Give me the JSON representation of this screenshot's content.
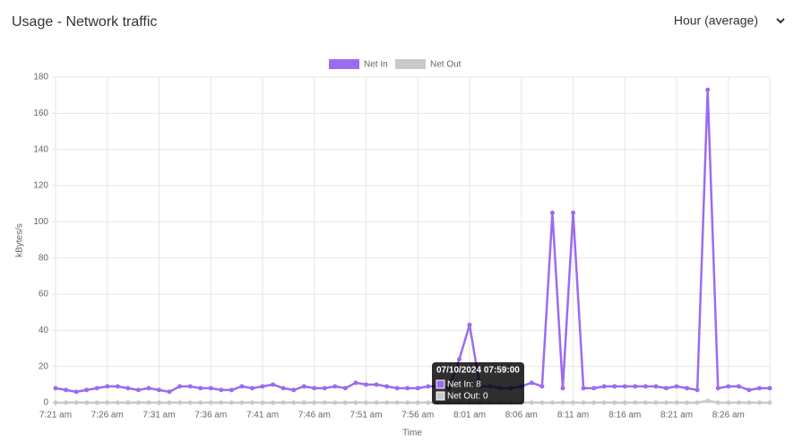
{
  "header": {
    "title": "Usage - Network traffic",
    "dropdown": "Hour (average)"
  },
  "chart_data": {
    "type": "line",
    "x_label": "Time",
    "y_label": "kBytes/s",
    "categories": [
      "7:21 am",
      null,
      null,
      null,
      null,
      "7:26 am",
      null,
      null,
      null,
      null,
      "7:31 am",
      null,
      null,
      null,
      null,
      "7:36 am",
      null,
      null,
      null,
      null,
      "7:41 am",
      null,
      null,
      null,
      null,
      "7:46 am",
      null,
      null,
      null,
      null,
      "7:51 am",
      null,
      null,
      null,
      null,
      "7:56 am",
      null,
      null,
      null,
      null,
      "8:01 am",
      null,
      null,
      null,
      null,
      "8:06 am",
      null,
      null,
      null,
      null,
      "8:11 am",
      null,
      null,
      null,
      null,
      "8:16 am",
      null,
      null,
      null,
      null,
      "8:21 am",
      null,
      null,
      null,
      null,
      "8:26 am",
      null,
      null,
      null,
      null
    ],
    "series": [
      {
        "name": "Net In",
        "color": "#9b6cf0",
        "values": [
          8,
          7,
          6,
          7,
          8,
          9,
          9,
          8,
          7,
          8,
          7,
          6,
          9,
          9,
          8,
          8,
          7,
          7,
          9,
          8,
          9,
          10,
          8,
          7,
          9,
          8,
          8,
          9,
          8,
          11,
          10,
          10,
          9,
          8,
          8,
          8,
          9,
          9,
          8,
          24,
          43,
          9,
          9,
          8,
          8,
          9,
          11,
          9,
          105,
          8,
          105,
          8,
          8,
          9,
          9,
          9,
          9,
          9,
          9,
          8,
          9,
          8,
          7,
          173,
          8,
          9,
          9,
          7,
          8,
          8
        ]
      },
      {
        "name": "Net Out",
        "color": "#c9c9c9",
        "values": [
          0,
          0,
          0,
          0,
          0,
          0,
          0,
          0,
          0,
          0,
          0,
          0,
          0,
          0,
          0,
          0,
          0,
          0,
          0,
          0,
          0,
          0,
          0,
          0,
          0,
          0,
          0,
          0,
          0,
          0,
          0,
          0,
          0,
          0,
          0,
          0,
          0,
          0,
          0,
          0,
          0,
          0,
          0,
          0,
          0,
          0,
          0,
          0,
          0,
          0,
          0,
          0,
          0,
          0,
          0,
          0,
          0,
          0,
          0,
          0,
          0,
          0,
          0,
          1,
          0,
          0,
          0,
          0,
          0,
          0
        ]
      }
    ],
    "ylim": [
      0,
      180
    ],
    "yticks": [
      0,
      20,
      40,
      60,
      80,
      100,
      120,
      140,
      160,
      180
    ],
    "grid": true,
    "legend": "top",
    "tooltip": {
      "title": "07/10/2024 07:59:00",
      "lines": [
        "Net In: 8",
        "Net Out: 0"
      ]
    }
  }
}
